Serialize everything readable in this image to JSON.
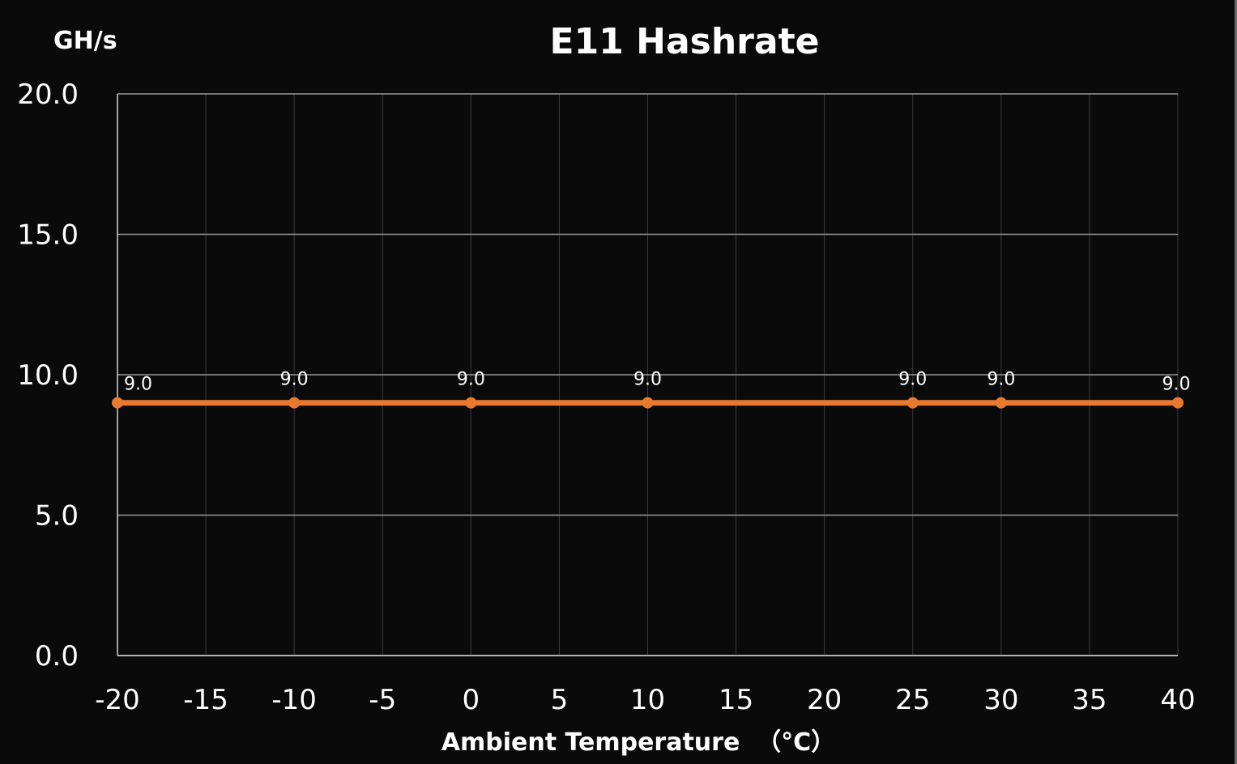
{
  "chart_data": {
    "type": "line",
    "title": "E11 Hashrate",
    "unit_label": "GH/s",
    "xlabel": "Ambient Temperature  （°C）",
    "ylabel": "",
    "xlim": [
      -20,
      40
    ],
    "ylim": [
      0,
      20
    ],
    "x_ticks": [
      "-20",
      "-15",
      "-10",
      "-5",
      "0",
      "5",
      "10",
      "15",
      "20",
      "25",
      "30",
      "35",
      "40"
    ],
    "y_ticks": [
      "0.0",
      "5.0",
      "10.0",
      "15.0",
      "20.0"
    ],
    "grid": true,
    "series": [
      {
        "color": "#e87a30",
        "x": [
          -20,
          -10,
          0,
          10,
          25,
          30,
          40
        ],
        "y": [
          9.0,
          9.0,
          9.0,
          9.0,
          9.0,
          9.0,
          9.0
        ],
        "labels": [
          "9.0",
          "9.0",
          "9.0",
          "9.0",
          "9.0",
          "9.0",
          "9.0"
        ]
      }
    ]
  }
}
